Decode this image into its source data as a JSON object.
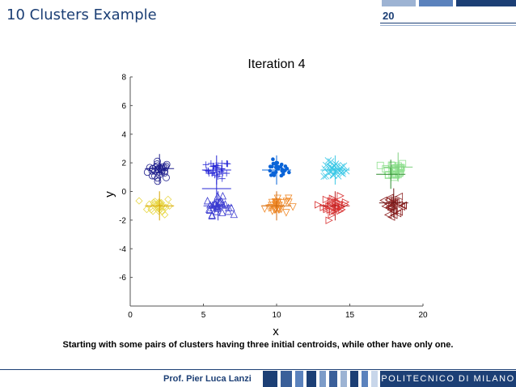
{
  "slide": {
    "title": "10 Clusters Example",
    "page_number": "20",
    "caption": "Starting with some pairs of clusters having three initial centroids, while other have only one.",
    "author": "Prof. Pier Luca Lanzi",
    "institution": "POLITECNICO DI MILANO",
    "theme_color": "#1c3f75"
  },
  "chart_data": {
    "type": "scatter",
    "title": "Iteration 4",
    "xlabel": "x",
    "ylabel": "y",
    "xlim": [
      0,
      20
    ],
    "ylim": [
      -8,
      8
    ],
    "xticks": [
      0,
      5,
      10,
      15,
      20
    ],
    "yticks": [
      -6,
      -4,
      -2,
      0,
      2,
      4,
      6,
      8
    ],
    "grid": false,
    "clusters": [
      {
        "marker": "circle",
        "color": "#1e1e8c",
        "center": [
          2,
          1.5
        ]
      },
      {
        "marker": "plus",
        "color": "#2a2ad6",
        "center": [
          6,
          1.5
        ]
      },
      {
        "marker": "dot",
        "color": "#0a64d8",
        "center": [
          10,
          1.5
        ]
      },
      {
        "marker": "x",
        "color": "#3cc8e6",
        "center": [
          14,
          1.5
        ]
      },
      {
        "marker": "square",
        "color": "#8ee08e",
        "center": [
          18,
          1.5
        ]
      },
      {
        "marker": "diamond",
        "color": "#e8d84a",
        "center": [
          2,
          -1
        ]
      },
      {
        "marker": "triangle-up",
        "color": "#3b3bd0",
        "center": [
          6,
          -1
        ]
      },
      {
        "marker": "triangle-down",
        "color": "#f08a2a",
        "center": [
          10,
          -1
        ]
      },
      {
        "marker": "triangle-right",
        "color": "#d83030",
        "center": [
          14,
          -1
        ]
      },
      {
        "marker": "triangle-left",
        "color": "#8c2222",
        "center": [
          18,
          -1
        ]
      }
    ],
    "centroids": [
      {
        "color": "#1e1e8c",
        "x": 2.0,
        "y": 1.6
      },
      {
        "color": "#2a2ad6",
        "x": 5.9,
        "y": 1.5
      },
      {
        "color": "#0a64d8",
        "x": 10.0,
        "y": 1.5
      },
      {
        "color": "#3cc8e6",
        "x": 14.0,
        "y": 1.5
      },
      {
        "color": "#2e8b2e",
        "x": 17.8,
        "y": 1.2
      },
      {
        "color": "#7fd07f",
        "x": 18.3,
        "y": 1.7
      },
      {
        "color": "#d8a400",
        "x": 2.0,
        "y": -1.0
      },
      {
        "color": "#2a2ad6",
        "x": 5.9,
        "y": 0.2
      },
      {
        "color": "#3b3bd0",
        "x": 6.0,
        "y": -1.0
      },
      {
        "color": "#d06a10",
        "x": 10.0,
        "y": -1.0
      },
      {
        "color": "#b82020",
        "x": 14.0,
        "y": -1.0
      },
      {
        "color": "#6e1a1a",
        "x": 18.0,
        "y": -0.8
      }
    ]
  }
}
